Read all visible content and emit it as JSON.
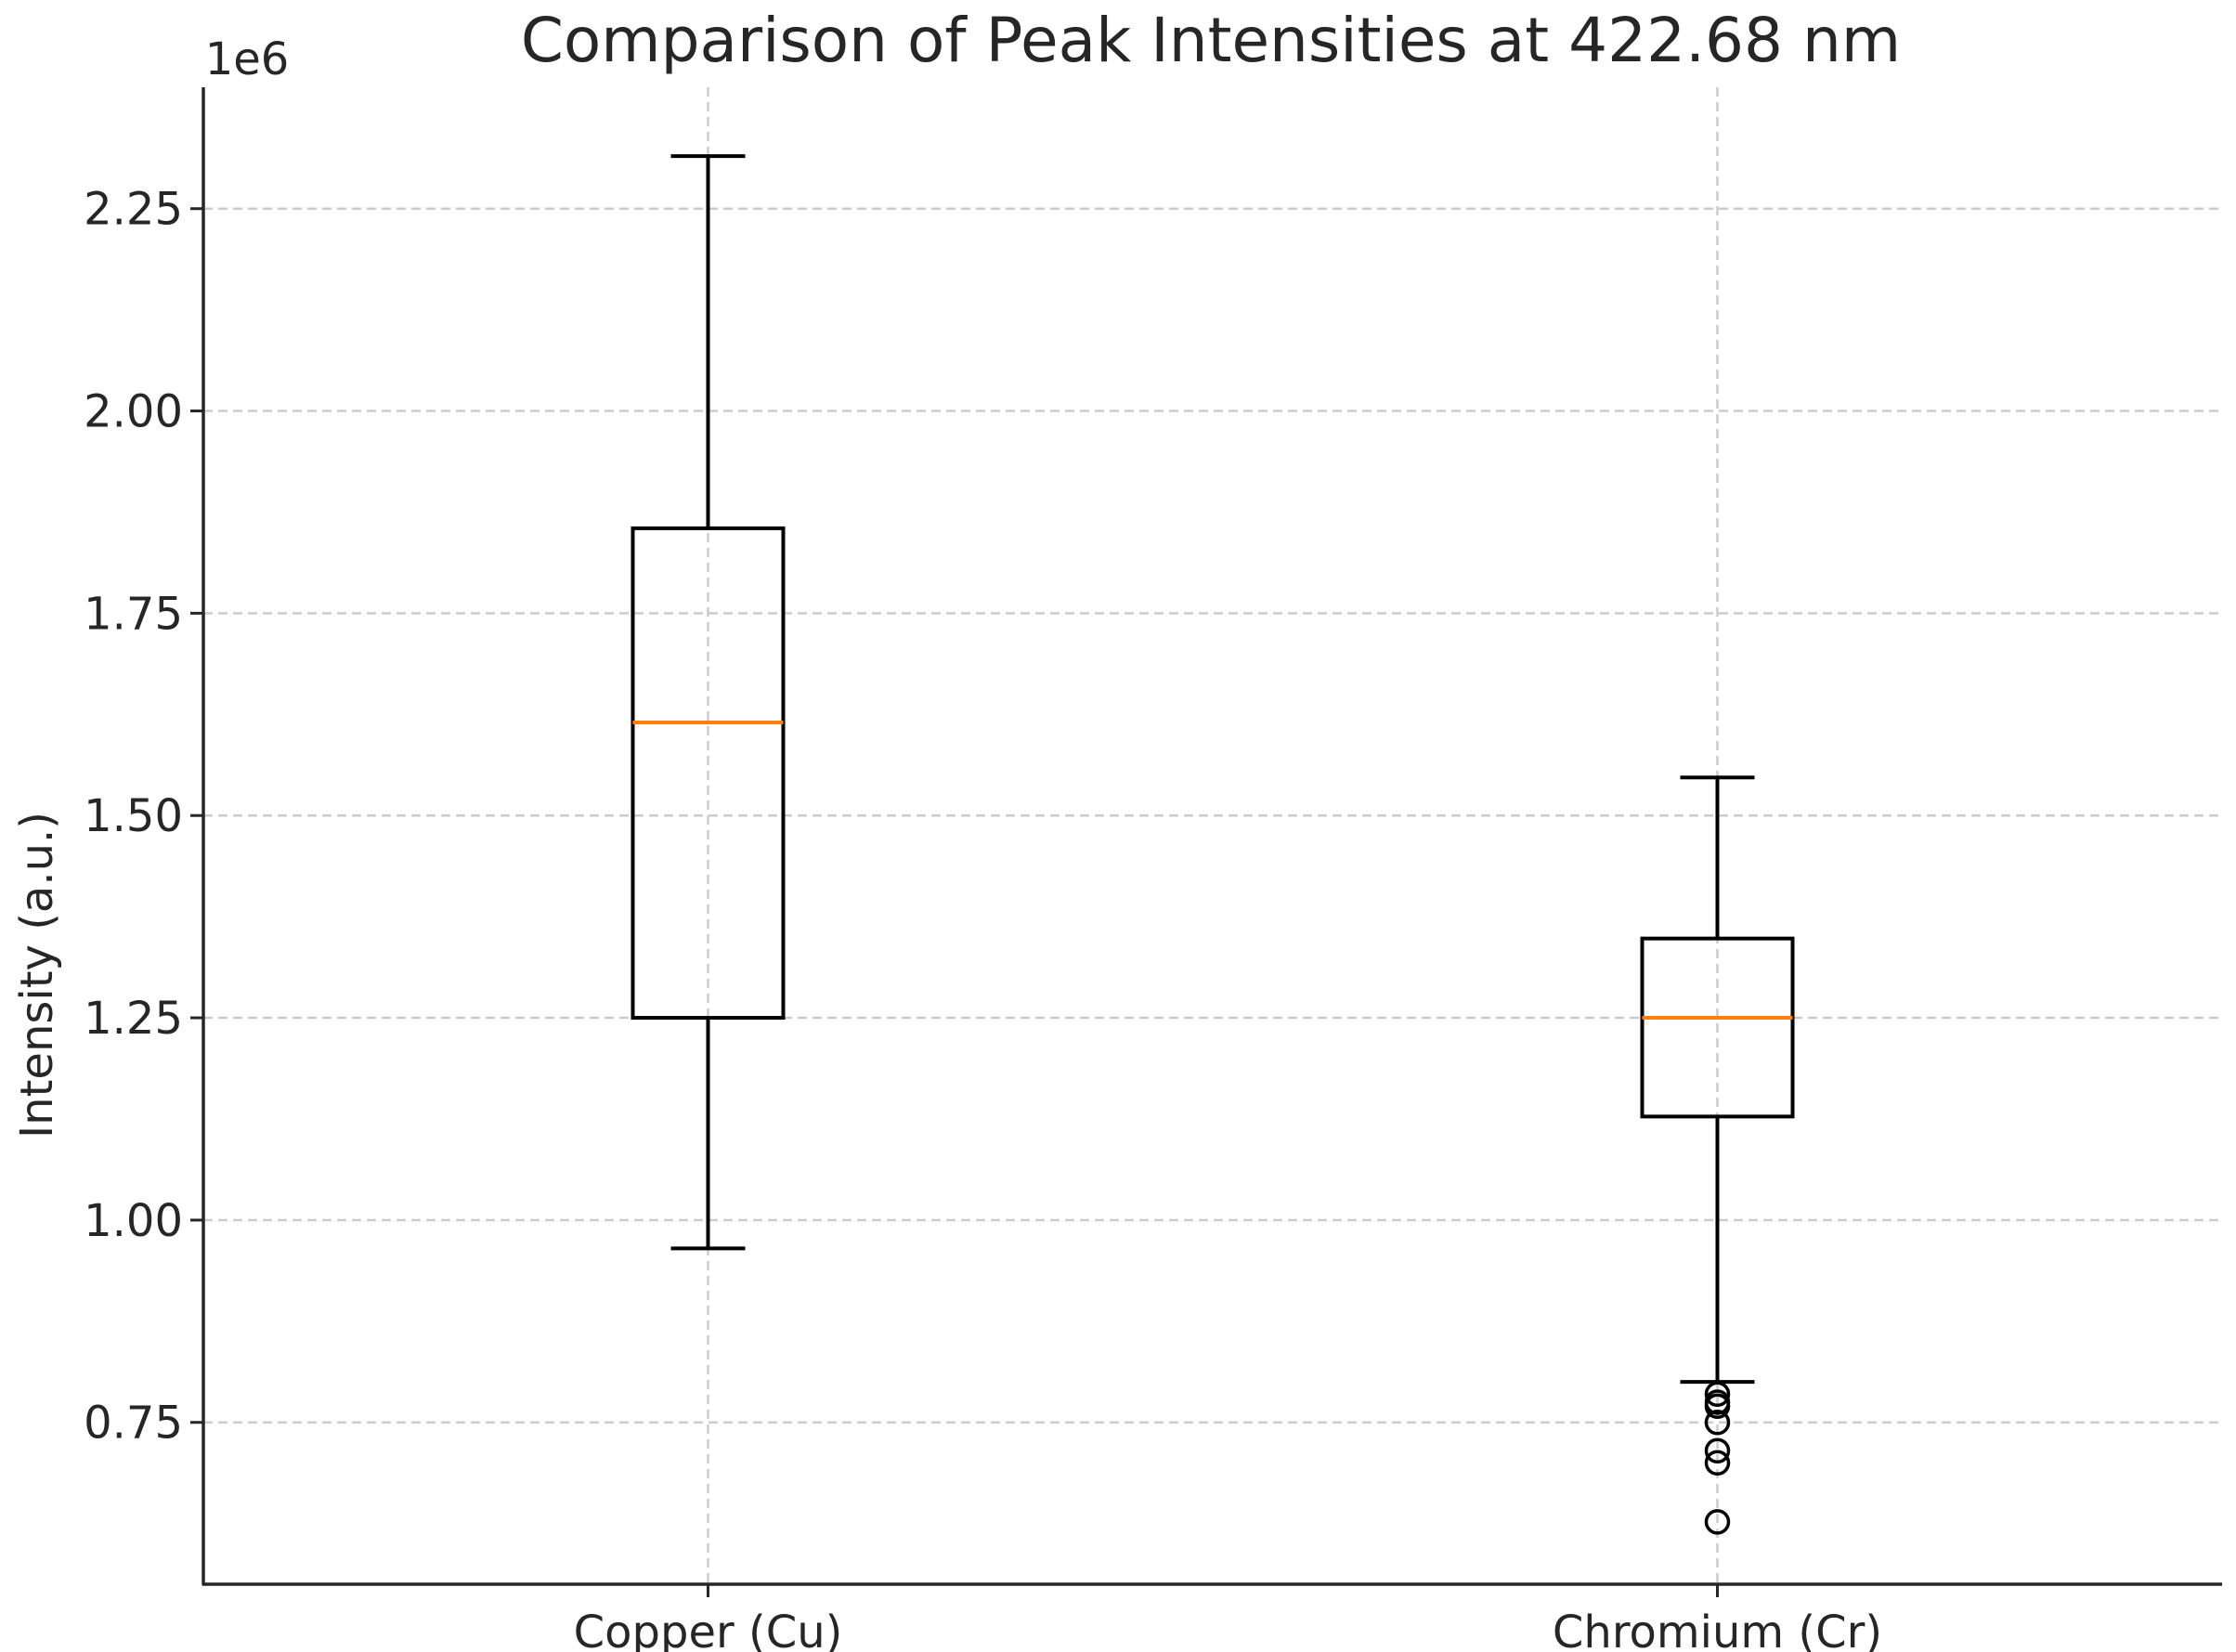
{
  "chart_data": {
    "type": "boxplot",
    "title": "Comparison of Peak Intensities at 422.68 nm",
    "xlabel": "",
    "ylabel": "Intensity (a.u.)",
    "offset_label": "1e6",
    "ylim": [
      0.55,
      2.4
    ],
    "yticks": [
      0.75,
      1.0,
      1.25,
      1.5,
      1.75,
      2.0,
      2.25
    ],
    "ytick_labels": [
      "0.75",
      "1.00",
      "1.25",
      "1.50",
      "1.75",
      "2.00",
      "2.25"
    ],
    "grid": true,
    "median_color": "#ff7f0e",
    "series": [
      {
        "name": "Copper (Cu)",
        "whisker_low": 0.965,
        "q1": 1.25,
        "median": 1.615,
        "q3": 1.855,
        "whisker_high": 2.315,
        "outliers": []
      },
      {
        "name": "Chromium (Cr)",
        "whisker_low": 0.8,
        "q1": 1.128,
        "median": 1.25,
        "q3": 1.348,
        "whisker_high": 1.547,
        "outliers": [
          0.785,
          0.775,
          0.77,
          0.75,
          0.715,
          0.7,
          0.627
        ]
      }
    ]
  }
}
